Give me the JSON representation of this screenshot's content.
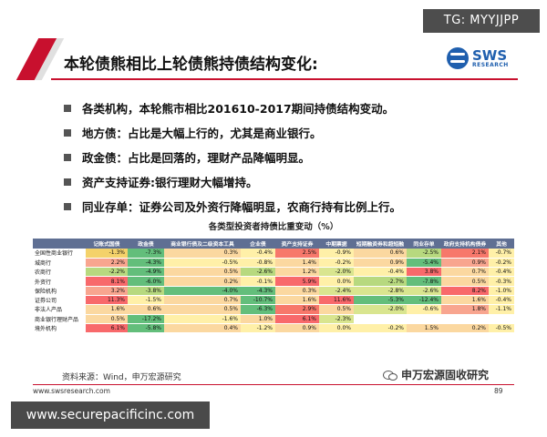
{
  "watermark_top": "TG: MYYJJPP",
  "watermark_bottom": "www.securepacificinc.com",
  "title": "本轮债熊相比上轮债熊持债结构变化:",
  "logo": {
    "main": "SWS",
    "sub": "RESEARCH"
  },
  "bullets": [
    "各类机构，本轮熊市相比201610-2017期间持债结构变动。",
    "地方债：占比是大幅上行的，尤其是商业银行。",
    "政金债：占比是回落的，理财产品降幅明显。",
    "资产支持证券:银行理财大幅增持。",
    "同业存单：证券公司及外资行降幅明显，农商行持有比例上行。"
  ],
  "table_title": "各类型投资者持债比重变动（%）",
  "table": {
    "headers": [
      "",
      "记账式国债",
      "政金债",
      "商业银行债及二级资本工具",
      "企业债",
      "资产支持证券",
      "中期票据",
      "短期融资券和超短融",
      "同业存单",
      "政府支持机构债券",
      "其他"
    ],
    "rows": [
      {
        "name": "全国性商业银行",
        "cells": [
          {
            "v": "-1.3%",
            "c": "#f4d26a"
          },
          {
            "v": "-7.3%",
            "c": "#63be7b"
          },
          {
            "v": "0.3%",
            "c": "#fbd8a0"
          },
          {
            "v": "-0.4%",
            "c": "#fff0a8"
          },
          {
            "v": "2.5%",
            "c": "#f7786b"
          },
          {
            "v": "-0.9%",
            "c": "#fff0a8"
          },
          {
            "v": "0.6%",
            "c": "#fbd8a0"
          },
          {
            "v": "-2.5%",
            "c": "#b7d97f"
          },
          {
            "v": "2.1%",
            "c": "#f7786b"
          },
          {
            "v": "-0.7%",
            "c": "#fff0a8"
          }
        ]
      },
      {
        "name": "城商行",
        "cells": [
          {
            "v": "2.2%",
            "c": "#f8a58f"
          },
          {
            "v": "-4.3%",
            "c": "#63be7b"
          },
          {
            "v": "-0.5%",
            "c": "#fff0a8"
          },
          {
            "v": "-0.8%",
            "c": "#fff0a8"
          },
          {
            "v": "1.4%",
            "c": "#fbd8a0"
          },
          {
            "v": "-0.2%",
            "c": "#fff0a8"
          },
          {
            "v": "0.9%",
            "c": "#fbd8a0"
          },
          {
            "v": "-5.4%",
            "c": "#63be7b"
          },
          {
            "v": "0.9%",
            "c": "#f8a58f"
          },
          {
            "v": "-0.2%",
            "c": "#fff0a8"
          }
        ]
      },
      {
        "name": "农商行",
        "cells": [
          {
            "v": "-2.2%",
            "c": "#b7d97f"
          },
          {
            "v": "-4.9%",
            "c": "#63be7b"
          },
          {
            "v": "0.5%",
            "c": "#fbd8a0"
          },
          {
            "v": "-2.6%",
            "c": "#b7d97f"
          },
          {
            "v": "1.2%",
            "c": "#fbd8a0"
          },
          {
            "v": "-2.0%",
            "c": "#d9e58f"
          },
          {
            "v": "-0.4%",
            "c": "#fff0a8"
          },
          {
            "v": "3.8%",
            "c": "#f8696b"
          },
          {
            "v": "0.7%",
            "c": "#fbd8a0"
          },
          {
            "v": "-0.4%",
            "c": "#fff0a8"
          }
        ]
      },
      {
        "name": "外资行",
        "cells": [
          {
            "v": "8.1%",
            "c": "#f8696b"
          },
          {
            "v": "-6.0%",
            "c": "#63be7b"
          },
          {
            "v": "0.2%",
            "c": "#fbd8a0"
          },
          {
            "v": "-0.1%",
            "c": "#fff0a8"
          },
          {
            "v": "5.9%",
            "c": "#f8696b"
          },
          {
            "v": "0.0%",
            "c": "#fff0a8"
          },
          {
            "v": "-2.7%",
            "c": "#b7d97f"
          },
          {
            "v": "-7.8%",
            "c": "#63be7b"
          },
          {
            "v": "0.5%",
            "c": "#fbd8a0"
          },
          {
            "v": "-0.3%",
            "c": "#fff0a8"
          }
        ]
      },
      {
        "name": "保险机构",
        "cells": [
          {
            "v": "3.2%",
            "c": "#f8a58f"
          },
          {
            "v": "-3.8%",
            "c": "#b7d97f"
          },
          {
            "v": "-4.0%",
            "c": "#63be7b"
          },
          {
            "v": "-4.3%",
            "c": "#63be7b"
          },
          {
            "v": "0.3%",
            "c": "#fbd8a0"
          },
          {
            "v": "-2.4%",
            "c": "#d9e58f"
          },
          {
            "v": "-2.8%",
            "c": "#d9e58f"
          },
          {
            "v": "-2.6%",
            "c": "#d9e58f"
          },
          {
            "v": "8.2%",
            "c": "#f8696b"
          },
          {
            "v": "-1.0%",
            "c": "#fff0a8"
          }
        ]
      },
      {
        "name": "证券公司",
        "cells": [
          {
            "v": "11.3%",
            "c": "#f8696b"
          },
          {
            "v": "-1.5%",
            "c": "#fff0a8"
          },
          {
            "v": "0.7%",
            "c": "#fbd8a0"
          },
          {
            "v": "-10.7%",
            "c": "#63be7b"
          },
          {
            "v": "1.6%",
            "c": "#fbd8a0"
          },
          {
            "v": "11.6%",
            "c": "#f8696b"
          },
          {
            "v": "-5.3%",
            "c": "#63be7b"
          },
          {
            "v": "-12.4%",
            "c": "#63be7b"
          },
          {
            "v": "1.6%",
            "c": "#fbd8a0"
          },
          {
            "v": "-0.4%",
            "c": "#fff0a8"
          }
        ]
      },
      {
        "name": "非法人产品",
        "cells": [
          {
            "v": "1.6%",
            "c": "#fbd8a0"
          },
          {
            "v": "0.6%",
            "c": "#fbd8a0"
          },
          {
            "v": "0.5%",
            "c": "#fbd8a0"
          },
          {
            "v": "-6.3%",
            "c": "#63be7b"
          },
          {
            "v": "2.9%",
            "c": "#f7786b"
          },
          {
            "v": "0.5%",
            "c": "#fbd8a0"
          },
          {
            "v": "-2.0%",
            "c": "#d9e58f"
          },
          {
            "v": "-0.6%",
            "c": "#fff0a8"
          },
          {
            "v": "1.8%",
            "c": "#f8a58f"
          },
          {
            "v": "-1.1%",
            "c": "#fff0a8"
          }
        ]
      },
      {
        "name": "商业银行理财产品",
        "cells": [
          {
            "v": "0.5%",
            "c": "#fbd8a0"
          },
          {
            "v": "-17.2%",
            "c": "#63be7b"
          },
          {
            "v": "-1.6%",
            "c": "#fff0a8"
          },
          {
            "v": "1.0%",
            "c": "#fbd8a0"
          },
          {
            "v": "6.1%",
            "c": "#f8696b"
          },
          {
            "v": "-2.3%",
            "c": "#d9e58f"
          },
          {
            "v": "",
            "c": "#ffffff"
          },
          {
            "v": "",
            "c": "#ffffff"
          },
          {
            "v": "",
            "c": "#ffffff"
          },
          {
            "v": "",
            "c": "#ffffff"
          }
        ]
      },
      {
        "name": "境外机构",
        "cells": [
          {
            "v": "6.1%",
            "c": "#f8696b"
          },
          {
            "v": "-5.8%",
            "c": "#63be7b"
          },
          {
            "v": "0.4%",
            "c": "#fbd8a0"
          },
          {
            "v": "-1.2%",
            "c": "#fff0a8"
          },
          {
            "v": "0.9%",
            "c": "#fbd8a0"
          },
          {
            "v": "0.0%",
            "c": "#fff0a8"
          },
          {
            "v": "-0.2%",
            "c": "#fff0a8"
          },
          {
            "v": "1.5%",
            "c": "#fbd8a0"
          },
          {
            "v": "0.2%",
            "c": "#fbd8a0"
          },
          {
            "v": "-0.5%",
            "c": "#fff0a8"
          }
        ]
      }
    ]
  },
  "source": "资料来源：Wind，申万宏源研究",
  "wechat": "申万宏源固收研究",
  "footer_url": "www.swsresearch.com",
  "page_number": "89"
}
